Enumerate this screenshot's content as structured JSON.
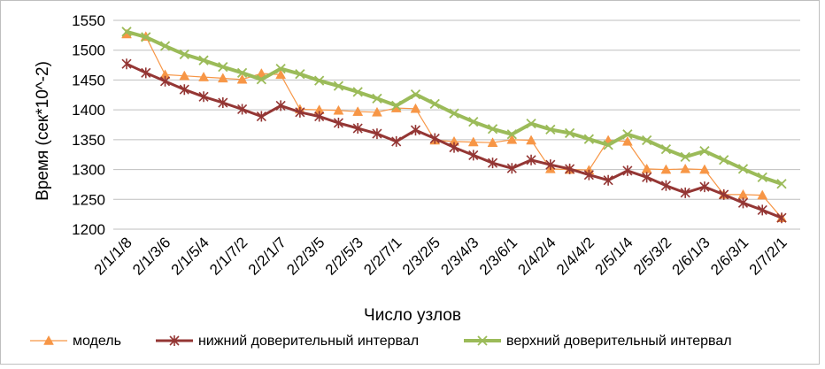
{
  "chart_data": {
    "type": "line",
    "xlabel": "Число узлов",
    "ylabel": "Время (сек*10^-2)",
    "ylim": [
      1200,
      1550
    ],
    "yticks": [
      1200,
      1250,
      1300,
      1350,
      1400,
      1450,
      1500,
      1550
    ],
    "grid": "horizontal",
    "legend_position": "bottom",
    "x_tick_labels": [
      "2/1/1/8",
      "2/1/3/6",
      "2/1/5/4",
      "2/1/7/2",
      "2/2/1/7",
      "2/2/3/5",
      "2/2/5/3",
      "2/2/7/1",
      "2/3/2/5",
      "2/3/4/3",
      "2/3/6/1",
      "2/4/2/4",
      "2/4/4/2",
      "2/5/1/4",
      "2/5/3/2",
      "2/6/1/3",
      "2/6/3/1",
      "2/7/2/1"
    ],
    "series": [
      {
        "name": "модель",
        "color": "#F79646",
        "marker": "triangle",
        "values": [
          1527,
          1523,
          1459,
          1457,
          1455,
          1453,
          1451,
          1461,
          1459,
          1401,
          1400,
          1399,
          1397,
          1396,
          1403,
          1402,
          1349,
          1347,
          1346,
          1345,
          1350,
          1349,
          1301,
          1300,
          1299,
          1349,
          1347,
          1301,
          1300,
          1301,
          1300,
          1258,
          1258,
          1257,
          1219
        ]
      },
      {
        "name": "нижний доверительный интервал",
        "color": "#943634",
        "marker": "star",
        "values": [
          1477,
          1462,
          1448,
          1434,
          1422,
          1412,
          1401,
          1389,
          1407,
          1396,
          1389,
          1378,
          1369,
          1360,
          1347,
          1366,
          1352,
          1337,
          1324,
          1311,
          1302,
          1316,
          1308,
          1301,
          1291,
          1282,
          1298,
          1287,
          1273,
          1261,
          1271,
          1258,
          1244,
          1232,
          1219
        ]
      },
      {
        "name": "верхний доверительный интервал",
        "color": "#9BBB59",
        "marker": "x",
        "values": [
          1531,
          1522,
          1507,
          1493,
          1483,
          1472,
          1462,
          1451,
          1469,
          1460,
          1449,
          1440,
          1430,
          1419,
          1407,
          1426,
          1410,
          1394,
          1380,
          1368,
          1359,
          1377,
          1367,
          1361,
          1351,
          1341,
          1359,
          1349,
          1334,
          1321,
          1331,
          1316,
          1301,
          1287,
          1276
        ]
      }
    ]
  }
}
